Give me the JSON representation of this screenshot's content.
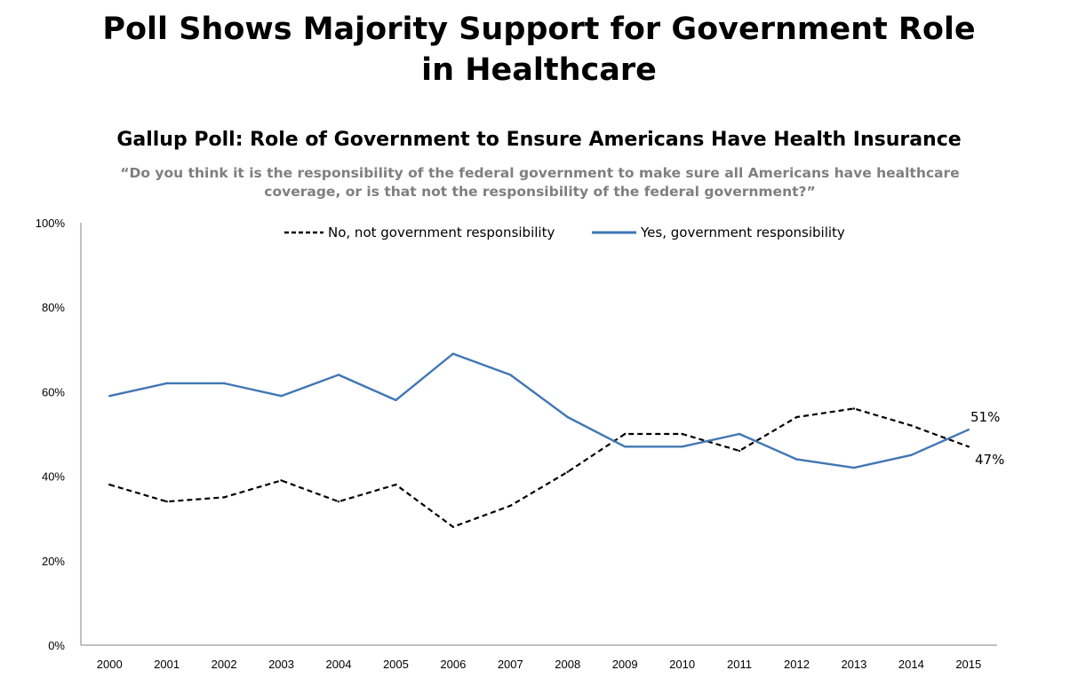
{
  "title_line1": "Poll Shows Majority Support for Government Role",
  "title_line2": "in Healthcare",
  "chart_data": {
    "type": "line",
    "title": "Gallup Poll: Role of Government to Ensure Americans Have Health Insurance",
    "subtitle": "“Do you think it is the responsibility of the federal government to make sure all Americans have healthcare coverage, or is that not the responsibility of the federal government?”",
    "x": [
      "2000",
      "2001",
      "2002",
      "2003",
      "2004",
      "2005",
      "2006",
      "2007",
      "2008",
      "2009",
      "2010",
      "2011",
      "2012",
      "2013",
      "2014",
      "2015"
    ],
    "ylim": [
      0,
      100
    ],
    "yticks": [
      0,
      20,
      40,
      60,
      80,
      100
    ],
    "ytick_labels": [
      "0%",
      "20%",
      "40%",
      "60%",
      "80%",
      "100%"
    ],
    "grid": false,
    "legend_position": "top",
    "series": [
      {
        "name": "No, not government responsibility",
        "color": "#000000",
        "style": "dashed",
        "values": [
          38,
          34,
          35,
          39,
          34,
          38,
          28,
          33,
          41,
          50,
          50,
          46,
          54,
          56,
          52,
          47
        ],
        "end_label": "47%"
      },
      {
        "name": "Yes, government responsibility",
        "color": "#4177b4",
        "style": "solid",
        "values": [
          59,
          62,
          62,
          59,
          64,
          58,
          69,
          64,
          54,
          47,
          47,
          50,
          44,
          42,
          45,
          51
        ],
        "end_label": "51%"
      }
    ]
  }
}
